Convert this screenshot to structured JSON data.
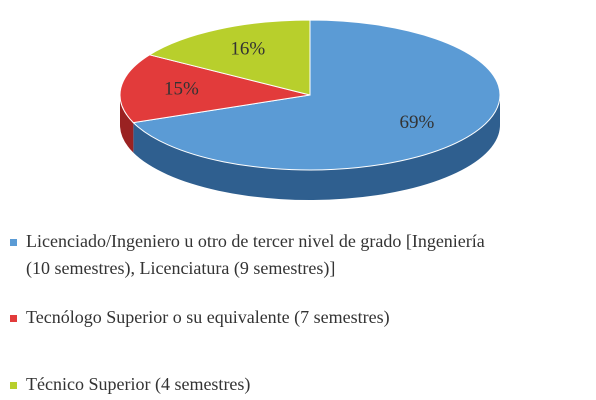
{
  "chart_data": {
    "type": "pie",
    "categories": [
      "Licenciado/Ingeniero u otro de tercer nivel de grado [Ingeniería (10 semestres), Licenciatura (9 semestres)]",
      "Tecnólogo Superior o su equivalente (7 semestres)",
      "Técnico Superior (4 semestres)"
    ],
    "values": [
      69,
      15,
      16
    ],
    "value_labels": [
      "69%",
      "15%",
      "16%"
    ],
    "colors": [
      "#5b9bd5",
      "#e23b3b",
      "#b8cf2c"
    ],
    "side_colors": [
      "#2f5f8f",
      "#9a2222",
      "#7f9420"
    ],
    "legend": "bottom"
  }
}
